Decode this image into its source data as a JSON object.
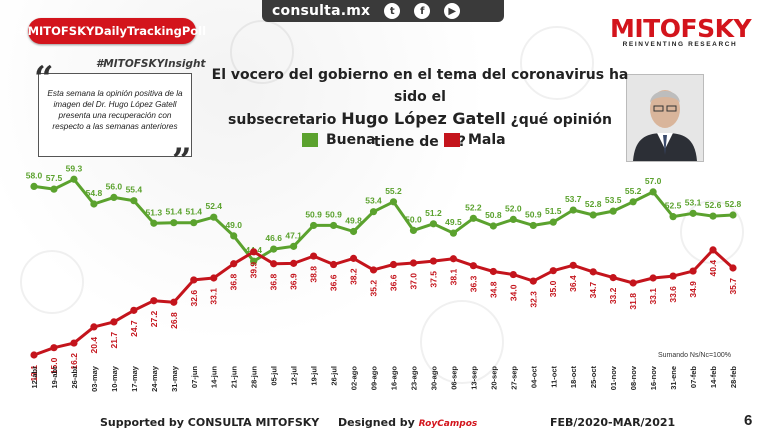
{
  "header": {
    "site": "consulta.mx",
    "social": [
      "twitter-icon",
      "facebook-icon",
      "youtube-icon"
    ],
    "social_glyphs": [
      "t",
      "f",
      "▶"
    ]
  },
  "poll_tag": "#MITOFSKYDailyTrackingPoll",
  "insight_tag": "#MITOFSKYInsight",
  "insight_text": "Esta semana la opinión positiva de la imagen del  Dr. Hugo López Gatell presenta una recuperación con respecto a las semanas anteriores",
  "logo": {
    "main": "MITOFSKY",
    "sub": "REINVENTING RESEARCH"
  },
  "colors": {
    "buena": "#5ba22e",
    "mala": "#c4141c",
    "accent": "#d3141c"
  },
  "note": "Sumando Ns/Nc=100%",
  "footer": {
    "supported": "Supported by   CONSULTA  MITOFSKY",
    "designed": "Designed by",
    "designer": "RoyCampos",
    "period": "FEB/2020-MAR/2021",
    "page": "6"
  },
  "chart_data": {
    "type": "line",
    "title_line1": "El vocero del gobierno en el tema del coronavirus ha sido el",
    "title_line2_pre": "subsecretario ",
    "title_line2_name": "Hugo López Gatell",
    "title_line2_post": " ¿qué opinión tiene de él?",
    "categories": [
      "12-abr",
      "19-abr",
      "26-abr",
      "03-may",
      "10-may",
      "17-may",
      "24-may",
      "31-may",
      "07-jun",
      "14-jun",
      "21-jun",
      "28-jun",
      "05-jul",
      "12-jul",
      "19-jul",
      "26-jul",
      "02-ago",
      "09-ago",
      "16-ago",
      "23-ago",
      "30-ago",
      "06-sep",
      "13-sep",
      "20-sep",
      "27-sep",
      "04-oct",
      "11-oct",
      "18-oct",
      "25-oct",
      "01-nov",
      "08-nov",
      "16-nov",
      "31-ene",
      "07-feb",
      "14-feb",
      "28-feb"
    ],
    "series": [
      {
        "name": "Buena",
        "values": [
          58.0,
          57.5,
          59.3,
          54.8,
          56.0,
          55.4,
          51.3,
          51.4,
          51.4,
          52.4,
          49.0,
          44.4,
          46.6,
          47.1,
          50.9,
          50.9,
          49.8,
          53.4,
          55.2,
          50.0,
          51.2,
          49.5,
          52.2,
          50.8,
          52.0,
          50.9,
          51.5,
          53.7,
          52.8,
          53.5,
          55.2,
          57.0,
          52.5,
          53.1,
          52.6,
          52.8
        ]
      },
      {
        "name": "Mala",
        "values": [
          13.1,
          15.0,
          16.2,
          20.4,
          21.7,
          24.7,
          27.2,
          26.8,
          32.6,
          33.1,
          36.8,
          39.9,
          36.8,
          36.9,
          38.8,
          36.6,
          38.2,
          35.2,
          36.6,
          37.0,
          37.5,
          38.1,
          36.3,
          34.8,
          34.0,
          32.3,
          35.0,
          36.4,
          34.7,
          33.2,
          31.8,
          33.1,
          33.6,
          34.9,
          40.4,
          35.7
        ]
      }
    ]
  }
}
